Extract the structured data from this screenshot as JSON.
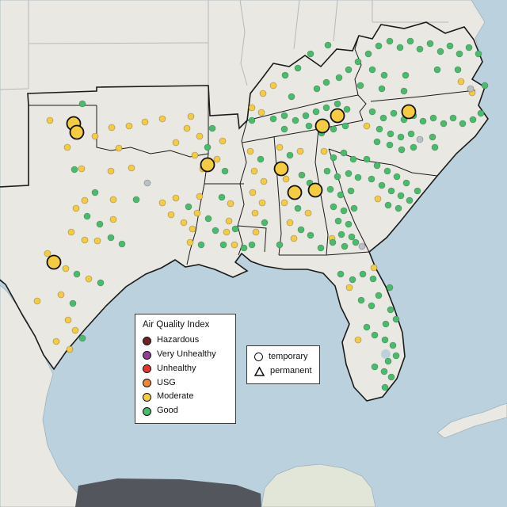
{
  "legend_aqi": {
    "title": "Air Quality Index",
    "items": [
      {
        "label": "Hazardous",
        "color": "#6e2426"
      },
      {
        "label": "Very Unhealthy",
        "color": "#8f3f97"
      },
      {
        "label": "Unhealthy",
        "color": "#e8352a"
      },
      {
        "label": "USG",
        "color": "#ef8733"
      },
      {
        "label": "Moderate",
        "color": "#f5cb3f"
      },
      {
        "label": "Good",
        "color": "#45bd6a"
      }
    ]
  },
  "legend_marker": {
    "items": [
      {
        "shape": "circle",
        "label": "temporary"
      },
      {
        "shape": "triangle",
        "label": "permanent"
      }
    ]
  },
  "map": {
    "colors": {
      "water": "#bcd1de",
      "land": "#eae8e2",
      "land_yucatan": "#e2e6d8",
      "dark_terrain": "#53575d",
      "region_border": "#1a1a1a",
      "state_border": "#b8b8b8",
      "coast_edge": "#9fb3bd"
    },
    "marker_outline": "#111111",
    "aqi_colors": {
      "m": "#f5cb3f",
      "g": "#45bd6a",
      "n": "#b9c0c6"
    },
    "points": [
      [
        104,
        131,
        "g"
      ],
      [
        63,
        152,
        "m"
      ],
      [
        120,
        172,
        "m"
      ],
      [
        141,
        161,
        "m"
      ],
      [
        163,
        159,
        "m"
      ],
      [
        183,
        154,
        "m"
      ],
      [
        205,
        150,
        "m"
      ],
      [
        241,
        147,
        "m"
      ],
      [
        222,
        180,
        "m"
      ],
      [
        150,
        187,
        "m"
      ],
      [
        85,
        186,
        "m"
      ],
      [
        103,
        213,
        "m"
      ],
      [
        94,
        214,
        "g"
      ],
      [
        140,
        216,
        "m"
      ],
      [
        166,
        212,
        "m"
      ],
      [
        186,
        231,
        "n"
      ],
      [
        120,
        243,
        "g"
      ],
      [
        107,
        253,
        "m"
      ],
      [
        96,
        263,
        "m"
      ],
      [
        143,
        252,
        "m"
      ],
      [
        172,
        252,
        "g"
      ],
      [
        110,
        273,
        "g"
      ],
      [
        126,
        283,
        "g"
      ],
      [
        143,
        277,
        "m"
      ],
      [
        90,
        293,
        "m"
      ],
      [
        107,
        303,
        "m"
      ],
      [
        123,
        304,
        "m"
      ],
      [
        140,
        300,
        "g"
      ],
      [
        154,
        308,
        "g"
      ],
      [
        60,
        320,
        "m"
      ],
      [
        83,
        339,
        "m"
      ],
      [
        97,
        346,
        "g"
      ],
      [
        112,
        352,
        "m"
      ],
      [
        127,
        357,
        "g"
      ],
      [
        47,
        380,
        "m"
      ],
      [
        77,
        372,
        "m"
      ],
      [
        92,
        383,
        "g"
      ],
      [
        86,
        404,
        "m"
      ],
      [
        95,
        417,
        "m"
      ],
      [
        104,
        427,
        "g"
      ],
      [
        88,
        441,
        "m"
      ],
      [
        71,
        431,
        "m"
      ],
      [
        205,
        256,
        "m"
      ],
      [
        222,
        250,
        "m"
      ],
      [
        238,
        261,
        "g"
      ],
      [
        216,
        271,
        "m"
      ],
      [
        232,
        281,
        "m"
      ],
      [
        236,
        162,
        "m"
      ],
      [
        252,
        172,
        "m"
      ],
      [
        268,
        162,
        "g"
      ],
      [
        281,
        178,
        "m"
      ],
      [
        262,
        186,
        "g"
      ],
      [
        246,
        196,
        "m"
      ],
      [
        274,
        201,
        "m"
      ],
      [
        256,
        213,
        "m"
      ],
      [
        284,
        216,
        "g"
      ],
      [
        252,
        248,
        "m"
      ],
      [
        280,
        249,
        "g"
      ],
      [
        291,
        257,
        "m"
      ],
      [
        249,
        269,
        "m"
      ],
      [
        263,
        276,
        "g"
      ],
      [
        289,
        279,
        "m"
      ],
      [
        243,
        289,
        "m"
      ],
      [
        272,
        291,
        "g"
      ],
      [
        286,
        293,
        "m"
      ],
      [
        297,
        289,
        "g"
      ],
      [
        240,
        306,
        "m"
      ],
      [
        254,
        309,
        "g"
      ],
      [
        282,
        309,
        "g"
      ],
      [
        296,
        309,
        "m"
      ],
      [
        308,
        313,
        "g"
      ],
      [
        318,
        309,
        "g"
      ],
      [
        316,
        191,
        "m"
      ],
      [
        329,
        201,
        "g"
      ],
      [
        321,
        216,
        "m"
      ],
      [
        333,
        229,
        "m"
      ],
      [
        319,
        243,
        "m"
      ],
      [
        331,
        256,
        "m"
      ],
      [
        322,
        269,
        "m"
      ],
      [
        334,
        281,
        "g"
      ],
      [
        323,
        293,
        "m"
      ],
      [
        353,
        186,
        "m"
      ],
      [
        366,
        196,
        "g"
      ],
      [
        379,
        191,
        "m"
      ],
      [
        361,
        226,
        "m"
      ],
      [
        381,
        221,
        "g"
      ],
      [
        391,
        231,
        "g"
      ],
      [
        359,
        256,
        "m"
      ],
      [
        376,
        263,
        "g"
      ],
      [
        389,
        269,
        "m"
      ],
      [
        366,
        281,
        "m"
      ],
      [
        380,
        290,
        "g"
      ],
      [
        392,
        297,
        "g"
      ],
      [
        371,
        301,
        "m"
      ],
      [
        353,
        309,
        "g"
      ],
      [
        409,
        191,
        "m"
      ],
      [
        421,
        199,
        "g"
      ],
      [
        434,
        193,
        "g"
      ],
      [
        446,
        201,
        "g"
      ],
      [
        413,
        216,
        "g"
      ],
      [
        426,
        223,
        "g"
      ],
      [
        440,
        219,
        "g"
      ],
      [
        452,
        224,
        "g"
      ],
      [
        417,
        239,
        "g"
      ],
      [
        430,
        246,
        "g"
      ],
      [
        443,
        241,
        "g"
      ],
      [
        421,
        261,
        "g"
      ],
      [
        434,
        266,
        "g"
      ],
      [
        447,
        263,
        "g"
      ],
      [
        427,
        279,
        "g"
      ],
      [
        440,
        283,
        "g"
      ],
      [
        431,
        296,
        "g"
      ],
      [
        444,
        299,
        "g"
      ],
      [
        457,
        311,
        "n"
      ],
      [
        419,
        301,
        "m"
      ],
      [
        463,
        201,
        "g"
      ],
      [
        476,
        209,
        "g"
      ],
      [
        489,
        216,
        "g"
      ],
      [
        501,
        223,
        "g"
      ],
      [
        513,
        231,
        "g"
      ],
      [
        469,
        226,
        "g"
      ],
      [
        482,
        234,
        "g"
      ],
      [
        494,
        241,
        "g"
      ],
      [
        506,
        247,
        "g"
      ],
      [
        477,
        251,
        "m"
      ],
      [
        490,
        259,
        "g"
      ],
      [
        503,
        263,
        "g"
      ],
      [
        517,
        253,
        "g"
      ],
      [
        527,
        241,
        "g"
      ],
      [
        470,
        141,
        "g"
      ],
      [
        484,
        149,
        "g"
      ],
      [
        497,
        143,
        "g"
      ],
      [
        510,
        151,
        "g"
      ],
      [
        522,
        146,
        "g"
      ],
      [
        534,
        153,
        "g"
      ],
      [
        547,
        149,
        "g"
      ],
      [
        560,
        156,
        "g"
      ],
      [
        572,
        149,
        "g"
      ],
      [
        584,
        156,
        "g"
      ],
      [
        597,
        151,
        "g"
      ],
      [
        607,
        143,
        "g"
      ],
      [
        479,
        163,
        "g"
      ],
      [
        493,
        169,
        "g"
      ],
      [
        506,
        173,
        "g"
      ],
      [
        519,
        169,
        "g"
      ],
      [
        530,
        176,
        "n"
      ],
      [
        546,
        173,
        "g"
      ],
      [
        463,
        159,
        "m"
      ],
      [
        476,
        179,
        "g"
      ],
      [
        492,
        183,
        "g"
      ],
      [
        507,
        189,
        "g"
      ],
      [
        522,
        186,
        "g"
      ],
      [
        549,
        186,
        "g"
      ],
      [
        414,
        57,
        "g"
      ],
      [
        392,
        68,
        "g"
      ],
      [
        376,
        86,
        "g"
      ],
      [
        360,
        95,
        "g"
      ],
      [
        345,
        108,
        "m"
      ],
      [
        332,
        118,
        "m"
      ],
      [
        368,
        122,
        "g"
      ],
      [
        400,
        112,
        "g"
      ],
      [
        412,
        104,
        "g"
      ],
      [
        428,
        98,
        "g"
      ],
      [
        440,
        88,
        "g"
      ],
      [
        452,
        78,
        "g"
      ],
      [
        465,
        68,
        "g"
      ],
      [
        478,
        58,
        "g"
      ],
      [
        492,
        52,
        "g"
      ],
      [
        505,
        60,
        "g"
      ],
      [
        518,
        52,
        "g"
      ],
      [
        530,
        62,
        "g"
      ],
      [
        543,
        55,
        "g"
      ],
      [
        556,
        65,
        "g"
      ],
      [
        568,
        58,
        "g"
      ],
      [
        580,
        68,
        "g"
      ],
      [
        592,
        60,
        "g"
      ],
      [
        604,
        68,
        "g"
      ],
      [
        470,
        88,
        "g"
      ],
      [
        485,
        95,
        "g"
      ],
      [
        512,
        95,
        "g"
      ],
      [
        552,
        88,
        "g"
      ],
      [
        578,
        88,
        "g"
      ],
      [
        596,
        117,
        "m"
      ],
      [
        582,
        103,
        "m"
      ],
      [
        612,
        108,
        "g"
      ],
      [
        455,
        108,
        "g"
      ],
      [
        482,
        112,
        "g"
      ],
      [
        510,
        115,
        "g"
      ],
      [
        594,
        112,
        "n"
      ],
      [
        318,
        152,
        "g"
      ],
      [
        318,
        136,
        "m"
      ],
      [
        330,
        142,
        "m"
      ],
      [
        345,
        150,
        "g"
      ],
      [
        359,
        146,
        "g"
      ],
      [
        373,
        152,
        "g"
      ],
      [
        386,
        146,
        "g"
      ],
      [
        399,
        141,
        "g"
      ],
      [
        412,
        136,
        "g"
      ],
      [
        426,
        131,
        "g"
      ],
      [
        438,
        138,
        "g"
      ],
      [
        359,
        163,
        "g"
      ],
      [
        390,
        159,
        "g"
      ],
      [
        406,
        168,
        "g"
      ],
      [
        421,
        163,
        "g"
      ],
      [
        436,
        159,
        "g"
      ],
      [
        430,
        346,
        "g"
      ],
      [
        445,
        353,
        "g"
      ],
      [
        458,
        346,
        "g"
      ],
      [
        471,
        352,
        "g"
      ],
      [
        472,
        338,
        "m"
      ],
      [
        492,
        363,
        "g"
      ],
      [
        478,
        373,
        "g"
      ],
      [
        456,
        379,
        "g"
      ],
      [
        469,
        386,
        "g"
      ],
      [
        493,
        391,
        "g"
      ],
      [
        500,
        403,
        "g"
      ],
      [
        487,
        409,
        "g"
      ],
      [
        463,
        413,
        "g"
      ],
      [
        473,
        423,
        "g"
      ],
      [
        486,
        429,
        "g"
      ],
      [
        496,
        436,
        "g"
      ],
      [
        500,
        449,
        "g"
      ],
      [
        490,
        456,
        "g"
      ],
      [
        473,
        463,
        "g"
      ],
      [
        485,
        469,
        "g"
      ],
      [
        494,
        476,
        "g"
      ],
      [
        486,
        489,
        "g"
      ],
      [
        452,
        429,
        "m"
      ],
      [
        441,
        363,
        "m"
      ],
      [
        405,
        313,
        "g"
      ],
      [
        420,
        306,
        "g"
      ],
      [
        435,
        311,
        "g"
      ],
      [
        449,
        306,
        "g"
      ],
      [
        93,
        156,
        "m",
        "L"
      ],
      [
        97,
        167,
        "m",
        "L"
      ],
      [
        262,
        208,
        "m",
        "L"
      ],
      [
        355,
        213,
        "m",
        "L"
      ],
      [
        372,
        243,
        "m",
        "L"
      ],
      [
        398,
        240,
        "m",
        "L"
      ],
      [
        407,
        159,
        "m",
        "L"
      ],
      [
        426,
        146,
        "m",
        "L"
      ],
      [
        516,
        141,
        "m",
        "L"
      ],
      [
        68,
        331,
        "m",
        "L"
      ]
    ]
  }
}
